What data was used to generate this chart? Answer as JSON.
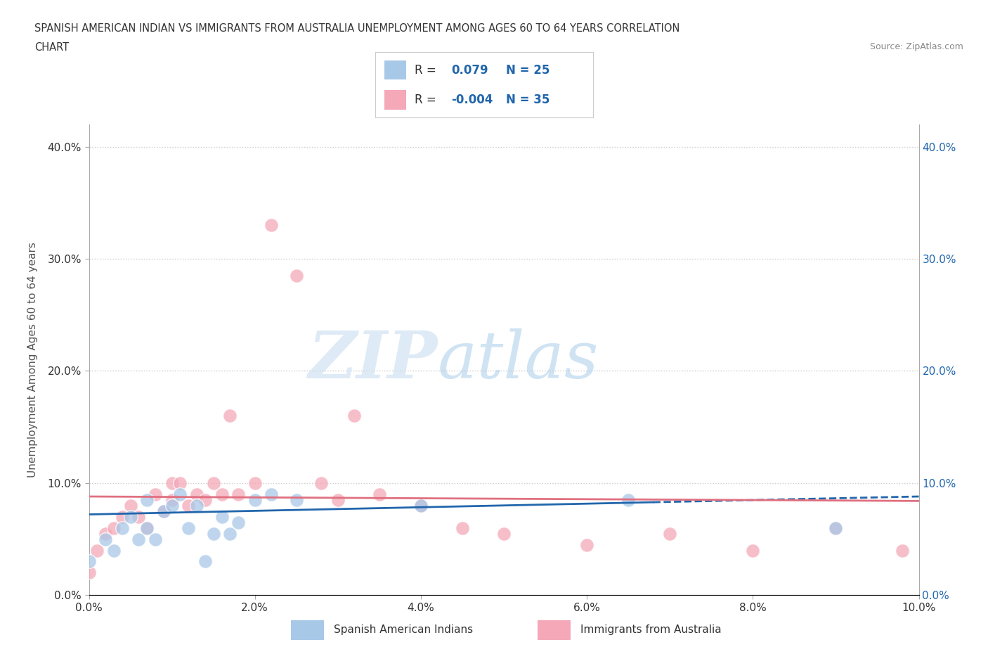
{
  "title_line1": "SPANISH AMERICAN INDIAN VS IMMIGRANTS FROM AUSTRALIA UNEMPLOYMENT AMONG AGES 60 TO 64 YEARS CORRELATION",
  "title_line2": "CHART",
  "source_text": "Source: ZipAtlas.com",
  "ylabel": "Unemployment Among Ages 60 to 64 years",
  "xlim": [
    0.0,
    0.1
  ],
  "ylim": [
    0.0,
    0.42
  ],
  "xtick_labels": [
    "0.0%",
    "2.0%",
    "4.0%",
    "6.0%",
    "8.0%",
    "10.0%"
  ],
  "xtick_values": [
    0.0,
    0.02,
    0.04,
    0.06,
    0.08,
    0.1
  ],
  "ytick_labels": [
    "0.0%",
    "10.0%",
    "20.0%",
    "30.0%",
    "40.0%"
  ],
  "ytick_values": [
    0.0,
    0.1,
    0.2,
    0.3,
    0.4
  ],
  "blue_R": "0.079",
  "blue_N": "25",
  "pink_R": "-0.004",
  "pink_N": "35",
  "blue_color": "#a8c8e8",
  "pink_color": "#f4a8b8",
  "blue_line_color": "#2166ac",
  "pink_line_color": "#e07080",
  "watermark_zip": "ZIP",
  "watermark_atlas": "atlas",
  "blue_scatter_x": [
    0.0,
    0.002,
    0.003,
    0.004,
    0.005,
    0.006,
    0.007,
    0.007,
    0.008,
    0.009,
    0.01,
    0.011,
    0.012,
    0.013,
    0.014,
    0.015,
    0.016,
    0.017,
    0.018,
    0.02,
    0.022,
    0.025,
    0.04,
    0.065,
    0.09
  ],
  "blue_scatter_y": [
    0.03,
    0.05,
    0.04,
    0.06,
    0.07,
    0.05,
    0.085,
    0.06,
    0.05,
    0.075,
    0.08,
    0.09,
    0.06,
    0.08,
    0.03,
    0.055,
    0.07,
    0.055,
    0.065,
    0.085,
    0.09,
    0.085,
    0.08,
    0.085,
    0.06
  ],
  "pink_scatter_x": [
    0.0,
    0.001,
    0.002,
    0.003,
    0.004,
    0.005,
    0.006,
    0.007,
    0.008,
    0.009,
    0.01,
    0.01,
    0.011,
    0.012,
    0.013,
    0.014,
    0.015,
    0.016,
    0.017,
    0.018,
    0.02,
    0.022,
    0.025,
    0.028,
    0.03,
    0.032,
    0.035,
    0.04,
    0.045,
    0.05,
    0.06,
    0.07,
    0.08,
    0.09,
    0.098
  ],
  "pink_scatter_y": [
    0.02,
    0.04,
    0.055,
    0.06,
    0.07,
    0.08,
    0.07,
    0.06,
    0.09,
    0.075,
    0.085,
    0.1,
    0.1,
    0.08,
    0.09,
    0.085,
    0.1,
    0.09,
    0.16,
    0.09,
    0.1,
    0.33,
    0.285,
    0.1,
    0.085,
    0.16,
    0.09,
    0.08,
    0.06,
    0.055,
    0.045,
    0.055,
    0.04,
    0.06,
    0.04
  ],
  "blue_line_x0": 0.0,
  "blue_line_y0": 0.072,
  "blue_line_x1": 0.1,
  "blue_line_y1": 0.088,
  "blue_line_dash_x0": 0.065,
  "blue_line_dash_y0": 0.082,
  "blue_line_dash_x1": 0.1,
  "blue_line_dash_y1": 0.088,
  "pink_line_x0": 0.0,
  "pink_line_y0": 0.088,
  "pink_line_x1": 0.1,
  "pink_line_y1": 0.084
}
